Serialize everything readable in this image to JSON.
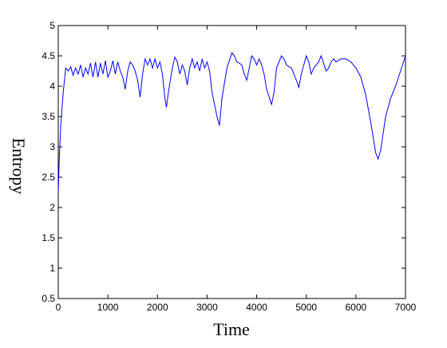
{
  "chart_data": {
    "type": "line",
    "xlabel": "Time",
    "ylabel": "Entropy",
    "xlim": [
      0,
      7000
    ],
    "ylim": [
      0.5,
      5
    ],
    "xticks": [
      0,
      1000,
      2000,
      3000,
      4000,
      5000,
      6000,
      7000
    ],
    "yticks": [
      0.5,
      1,
      1.5,
      2,
      2.5,
      3,
      3.5,
      4,
      4.5,
      5
    ],
    "grid": false,
    "series": [
      {
        "color": "#0000ff",
        "x": [
          0,
          20,
          50,
          100,
          150,
          200,
          250,
          300,
          350,
          400,
          450,
          500,
          550,
          600,
          650,
          700,
          750,
          800,
          850,
          900,
          950,
          1000,
          1050,
          1100,
          1150,
          1200,
          1250,
          1300,
          1350,
          1400,
          1450,
          1500,
          1550,
          1600,
          1650,
          1700,
          1750,
          1800,
          1850,
          1900,
          1950,
          2000,
          2050,
          2100,
          2150,
          2180,
          2220,
          2300,
          2350,
          2400,
          2450,
          2500,
          2550,
          2600,
          2650,
          2700,
          2750,
          2800,
          2850,
          2900,
          2950,
          3000,
          3050,
          3100,
          3200,
          3250,
          3300,
          3400,
          3500,
          3550,
          3600,
          3650,
          3700,
          3750,
          3800,
          3850,
          3900,
          3950,
          4000,
          4050,
          4100,
          4150,
          4200,
          4300,
          4350,
          4400,
          4500,
          4550,
          4600,
          4700,
          4800,
          4850,
          4900,
          5000,
          5050,
          5100,
          5150,
          5250,
          5300,
          5400,
          5450,
          5500,
          5550,
          5600,
          5700,
          5800,
          5900,
          6000,
          6100,
          6200,
          6300,
          6400,
          6450,
          6500,
          6600,
          6700,
          6800,
          6900,
          7000
        ],
        "values": [
          2.25,
          2.8,
          3.35,
          3.9,
          4.3,
          4.25,
          4.32,
          4.18,
          4.3,
          4.2,
          4.35,
          4.15,
          4.3,
          4.2,
          4.38,
          4.15,
          4.4,
          4.15,
          4.38,
          4.2,
          4.42,
          4.15,
          4.25,
          4.42,
          4.2,
          4.4,
          4.25,
          4.15,
          3.95,
          4.25,
          4.4,
          4.35,
          4.25,
          4.1,
          3.82,
          4.2,
          4.45,
          4.35,
          4.45,
          4.3,
          4.45,
          4.3,
          4.4,
          4.2,
          3.8,
          3.65,
          3.9,
          4.3,
          4.48,
          4.4,
          4.2,
          4.35,
          4.25,
          4.02,
          4.3,
          4.45,
          4.3,
          4.4,
          4.25,
          4.45,
          4.3,
          4.4,
          4.25,
          3.9,
          3.5,
          3.35,
          3.8,
          4.3,
          4.55,
          4.5,
          4.4,
          4.38,
          4.35,
          4.2,
          4.1,
          4.3,
          4.5,
          4.45,
          4.35,
          4.45,
          4.35,
          4.2,
          3.95,
          3.7,
          3.9,
          4.3,
          4.5,
          4.45,
          4.35,
          4.3,
          4.1,
          3.98,
          4.2,
          4.5,
          4.4,
          4.2,
          4.3,
          4.4,
          4.5,
          4.25,
          4.3,
          4.4,
          4.45,
          4.4,
          4.45,
          4.45,
          4.4,
          4.3,
          4.15,
          3.85,
          3.4,
          2.9,
          2.8,
          2.95,
          3.5,
          3.8,
          4.0,
          4.25,
          4.5
        ]
      }
    ]
  }
}
